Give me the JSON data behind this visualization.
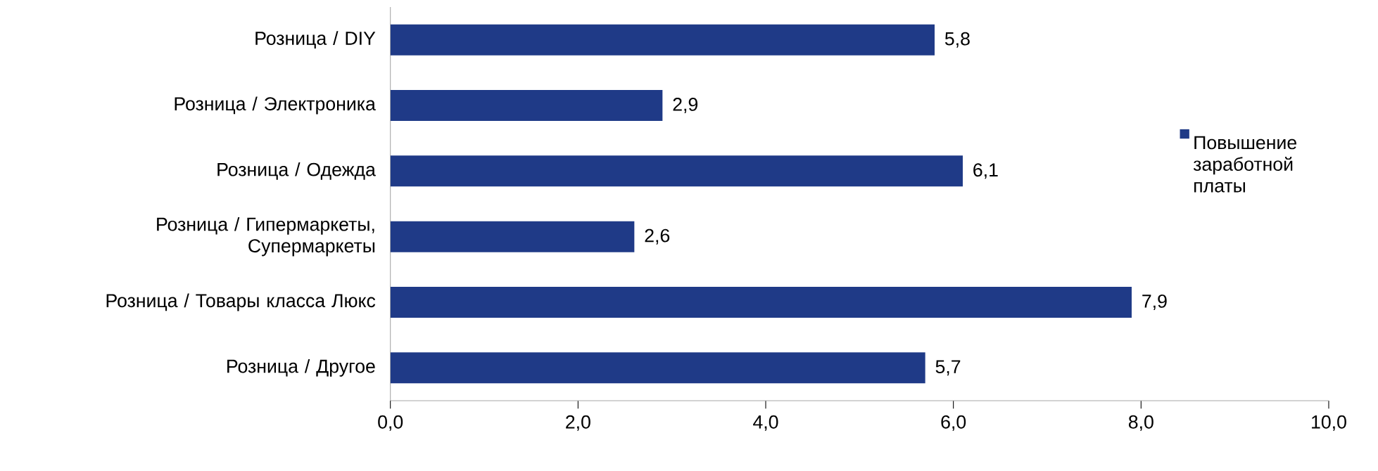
{
  "chart_data": {
    "type": "bar",
    "orientation": "horizontal",
    "categories": [
      "Розница / DIY",
      "Розница / Электроника",
      "Розница / Одежда",
      "Розница / Гипермаркеты, Супермаркеты",
      "Розница / Товары класса Люкс",
      "Розница / Другое"
    ],
    "series": [
      {
        "name": "Повышение заработной платы",
        "color": "#1f3a87",
        "values": [
          5.8,
          2.9,
          6.1,
          2.6,
          7.9,
          5.7
        ],
        "value_labels": [
          "5,8",
          "2,9",
          "6,1",
          "2,6",
          "7,9",
          "5,7"
        ]
      }
    ],
    "xlim": [
      0,
      10
    ],
    "xticks": [
      {
        "value": 0,
        "label": "0,0"
      },
      {
        "value": 2,
        "label": "2,0"
      },
      {
        "value": 4,
        "label": "4,0"
      },
      {
        "value": 6,
        "label": "6,0"
      },
      {
        "value": 8,
        "label": "8,0"
      },
      {
        "value": 10,
        "label": "10,0"
      }
    ],
    "legend": "right",
    "grid": false
  }
}
